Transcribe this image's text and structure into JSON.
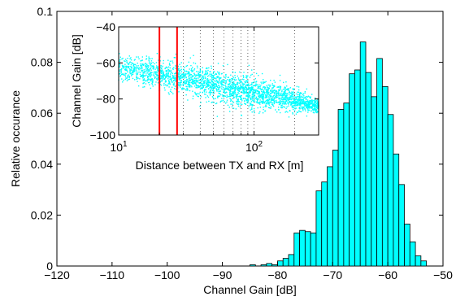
{
  "chart_data": [
    {
      "type": "bar",
      "subtype": "histogram",
      "xlabel": "Channel Gain [dB]",
      "ylabel": "Relative occurance",
      "xlim": [
        -120,
        -50
      ],
      "ylim": [
        0,
        0.1
      ],
      "xticks": [
        -120,
        -110,
        -100,
        -90,
        -80,
        -70,
        -60,
        -50
      ],
      "xtick_labels": [
        "−120",
        "−110",
        "−100",
        "−90",
        "−80",
        "−70",
        "−60",
        "−50"
      ],
      "yticks": [
        0,
        0.02,
        0.04,
        0.06,
        0.08,
        0.1
      ],
      "ytick_labels": [
        "0",
        "0.02",
        "0.04",
        "0.06",
        "0.08",
        "0.1"
      ],
      "bin_width": 1,
      "bar_color": "#00ffff",
      "edge_color": "#000000",
      "bins": [
        {
          "x": -85,
          "y": 0.0005
        },
        {
          "x": -84,
          "y": 0.0
        },
        {
          "x": -83,
          "y": 0.0005
        },
        {
          "x": -82,
          "y": 0.001
        },
        {
          "x": -81,
          "y": 0.0005
        },
        {
          "x": -80,
          "y": 0.002
        },
        {
          "x": -79,
          "y": 0.003
        },
        {
          "x": -78,
          "y": 0.0045
        },
        {
          "x": -77,
          "y": 0.013
        },
        {
          "x": -76,
          "y": 0.014
        },
        {
          "x": -75,
          "y": 0.0135
        },
        {
          "x": -74,
          "y": 0.013
        },
        {
          "x": -73,
          "y": 0.0295
        },
        {
          "x": -72,
          "y": 0.033
        },
        {
          "x": -71,
          "y": 0.039
        },
        {
          "x": -70,
          "y": 0.0455
        },
        {
          "x": -69,
          "y": 0.0615
        },
        {
          "x": -68,
          "y": 0.064
        },
        {
          "x": -67,
          "y": 0.0755
        },
        {
          "x": -66,
          "y": 0.077
        },
        {
          "x": -65,
          "y": 0.088
        },
        {
          "x": -64,
          "y": 0.076
        },
        {
          "x": -63,
          "y": 0.0665
        },
        {
          "x": -62,
          "y": 0.0815
        },
        {
          "x": -61,
          "y": 0.0705
        },
        {
          "x": -60,
          "y": 0.0595
        },
        {
          "x": -59,
          "y": 0.044
        },
        {
          "x": -58,
          "y": 0.032
        },
        {
          "x": -57,
          "y": 0.0165
        },
        {
          "x": -56,
          "y": 0.0095
        },
        {
          "x": -55,
          "y": 0.004
        },
        {
          "x": -54,
          "y": 0.002
        }
      ]
    },
    {
      "type": "scatter",
      "xlabel": "Distance between TX and RX [m]",
      "ylabel": "Channel Gain [dB]",
      "xscale": "log",
      "xlim": [
        10,
        300
      ],
      "ylim": [
        -100,
        -40
      ],
      "xticks": [
        10,
        100
      ],
      "xtick_labels": [
        {
          "base": "10",
          "exp": "1"
        },
        {
          "base": "10",
          "exp": "2"
        }
      ],
      "yticks": [
        -100,
        -80,
        -60,
        -40
      ],
      "ytick_labels": [
        "−100",
        "−80",
        "−60",
        "−40"
      ],
      "grid": "x-minor dotted",
      "point_color": "#00ffff",
      "trend": {
        "description": "dense point cloud; mean and spread sampled along distance",
        "points": [
          {
            "distance": 10,
            "mean": -62,
            "spread": 6
          },
          {
            "distance": 20,
            "mean": -66,
            "spread": 7
          },
          {
            "distance": 50,
            "mean": -72,
            "spread": 8
          },
          {
            "distance": 100,
            "mean": -77,
            "spread": 8
          },
          {
            "distance": 200,
            "mean": -81,
            "spread": 6
          },
          {
            "distance": 300,
            "mean": -84,
            "spread": 3
          }
        ]
      },
      "vertical_lines": [
        {
          "x": 20,
          "color": "#ff0000"
        },
        {
          "x": 27,
          "color": "#ff0000"
        }
      ]
    }
  ]
}
